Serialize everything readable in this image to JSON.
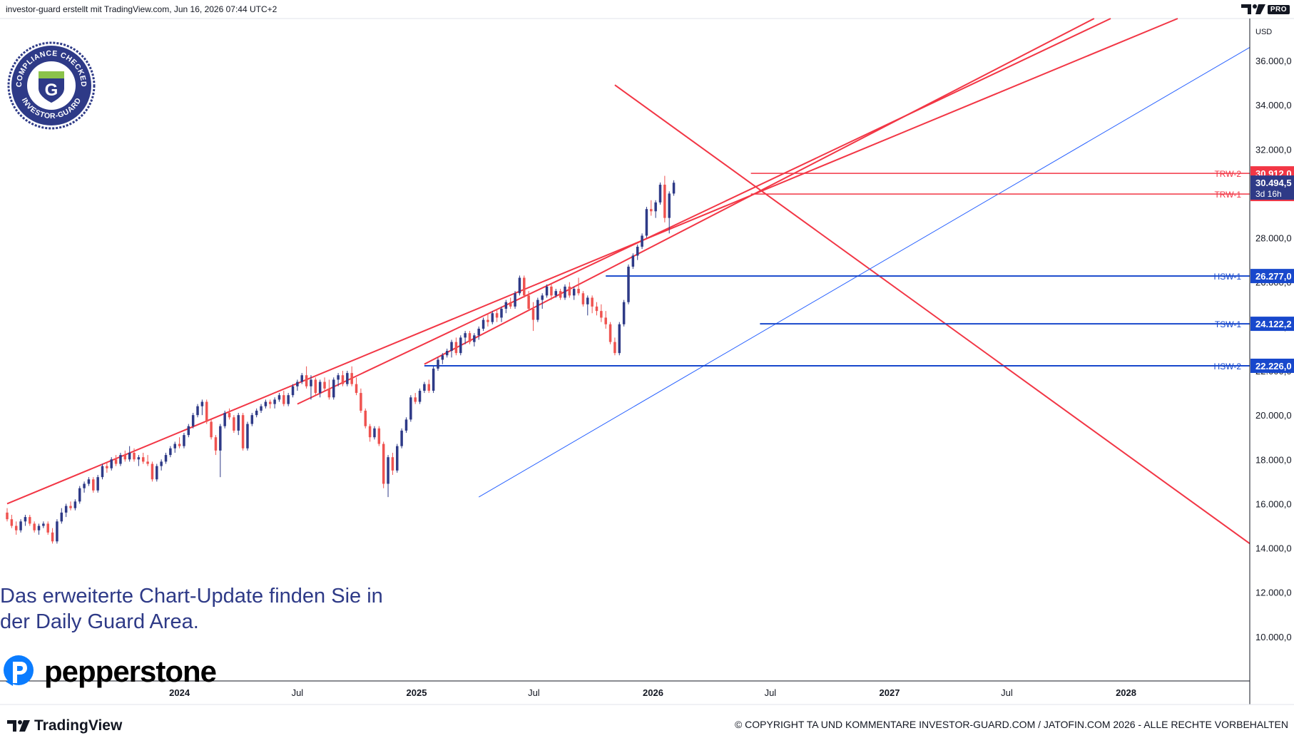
{
  "header": {
    "attribution": "investor-guard erstellt mit TradingView.com, Jun 16, 2026 07:44 UTC+2",
    "pro_label": "PRO"
  },
  "badge": {
    "top_text": "COMPLIANCE CHECKED",
    "bottom_text": "INVESTOR-GUARD",
    "letter": "G"
  },
  "promo": {
    "line1": "Das erweiterte Chart-Update finden Sie in",
    "line2": "der Daily Guard Area."
  },
  "pepperstone": {
    "name": "pepperstone"
  },
  "footer": {
    "tradingview": "TradingView",
    "copyright": "© COPYRIGHT TA UND KOMMENTARE INVESTOR-GUARD.COM / JATOFIN.COM 2026 - ALLE RECHTE VORBEHALTEN"
  },
  "colors": {
    "up": "#2e3a87",
    "down": "#ef5350",
    "resistance": "#f23645",
    "support": "#1848cc",
    "trend_support": "#2962ff",
    "axis_bg": "#ffffff"
  },
  "chart_data": {
    "type": "candlestick",
    "currency": "USD",
    "ylim": [
      8000,
      37900
    ],
    "xlim": [
      "2023-04-10",
      "2028-07-10"
    ],
    "y_ticks": [
      "10.000,0",
      "12.000,0",
      "14.000,0",
      "16.000,0",
      "18.000,0",
      "20.000,0",
      "22.000,0",
      "24.000,0",
      "26.000,0",
      "28.000,0",
      "30.000,0",
      "32.000,0",
      "34.000,0",
      "36.000,0"
    ],
    "x_ticks": [
      {
        "date": "2024-01-01",
        "label": "2024",
        "bold": true
      },
      {
        "date": "2024-07-01",
        "label": "Jul",
        "bold": false
      },
      {
        "date": "2025-01-01",
        "label": "2025",
        "bold": true
      },
      {
        "date": "2025-07-01",
        "label": "Jul",
        "bold": false
      },
      {
        "date": "2026-01-01",
        "label": "2026",
        "bold": true
      },
      {
        "date": "2026-07-01",
        "label": "Jul",
        "bold": false
      },
      {
        "date": "2027-01-01",
        "label": "2027",
        "bold": true
      },
      {
        "date": "2027-07-01",
        "label": "Jul",
        "bold": false
      },
      {
        "date": "2028-01-01",
        "label": "2028",
        "bold": true
      }
    ],
    "first_candle_date": "2023-04-10",
    "candle_interval_days": 7,
    "candles": [
      [
        15600,
        15800,
        15200,
        15300
      ],
      [
        15300,
        15500,
        14900,
        15000
      ],
      [
        15000,
        15200,
        14600,
        14800
      ],
      [
        14800,
        15300,
        14700,
        15200
      ],
      [
        15200,
        15500,
        15000,
        15400
      ],
      [
        15400,
        15500,
        15000,
        15100
      ],
      [
        15100,
        15200,
        14700,
        14800
      ],
      [
        14800,
        15100,
        14600,
        15000
      ],
      [
        15000,
        15200,
        14900,
        15100
      ],
      [
        15100,
        15200,
        14600,
        14700
      ],
      [
        14700,
        14900,
        14200,
        14300
      ],
      [
        14300,
        15300,
        14200,
        15200
      ],
      [
        15200,
        15800,
        15100,
        15600
      ],
      [
        15600,
        16000,
        15400,
        15900
      ],
      [
        15900,
        16100,
        15700,
        15800
      ],
      [
        15800,
        16200,
        15700,
        16100
      ],
      [
        16100,
        16800,
        16000,
        16700
      ],
      [
        16700,
        17000,
        16500,
        16900
      ],
      [
        16900,
        17200,
        16800,
        17100
      ],
      [
        17100,
        17200,
        16500,
        16600
      ],
      [
        16600,
        17300,
        16500,
        17200
      ],
      [
        17200,
        17800,
        17100,
        17700
      ],
      [
        17700,
        17900,
        17400,
        17600
      ],
      [
        17600,
        18100,
        17500,
        18000
      ],
      [
        18000,
        18200,
        17700,
        17800
      ],
      [
        17800,
        18300,
        17700,
        18200
      ],
      [
        18200,
        18400,
        17900,
        18000
      ],
      [
        18000,
        18600,
        17900,
        18300
      ],
      [
        18300,
        18500,
        17900,
        18000
      ],
      [
        18000,
        18200,
        17700,
        18100
      ],
      [
        18100,
        18300,
        17800,
        17900
      ],
      [
        17900,
        18200,
        17700,
        17800
      ],
      [
        17800,
        17900,
        17000,
        17100
      ],
      [
        17100,
        17800,
        17000,
        17700
      ],
      [
        17700,
        18000,
        17500,
        17900
      ],
      [
        17900,
        18300,
        17800,
        18200
      ],
      [
        18200,
        18600,
        18100,
        18500
      ],
      [
        18500,
        18800,
        18300,
        18700
      ],
      [
        18700,
        19000,
        18500,
        18600
      ],
      [
        18600,
        19200,
        18500,
        19100
      ],
      [
        19100,
        19600,
        19000,
        19500
      ],
      [
        19500,
        20100,
        19400,
        20000
      ],
      [
        20000,
        20500,
        19900,
        20400
      ],
      [
        20400,
        20700,
        20000,
        20600
      ],
      [
        20600,
        20700,
        19600,
        19700
      ],
      [
        19700,
        19800,
        18900,
        19000
      ],
      [
        19000,
        19100,
        18200,
        18400
      ],
      [
        18400,
        19600,
        17200,
        19500
      ],
      [
        19500,
        20200,
        19400,
        20100
      ],
      [
        20100,
        20300,
        19800,
        19900
      ],
      [
        19900,
        20000,
        19200,
        19300
      ],
      [
        19300,
        20100,
        19100,
        20000
      ],
      [
        20000,
        20100,
        18400,
        18500
      ],
      [
        18500,
        19700,
        18400,
        19600
      ],
      [
        19600,
        20100,
        19500,
        20000
      ],
      [
        20000,
        20300,
        19900,
        20200
      ],
      [
        20200,
        20500,
        20100,
        20400
      ],
      [
        20400,
        20700,
        20300,
        20600
      ],
      [
        20600,
        20700,
        20300,
        20500
      ],
      [
        20500,
        20800,
        20300,
        20700
      ],
      [
        20700,
        21000,
        20600,
        20900
      ],
      [
        20900,
        21100,
        20400,
        20500
      ],
      [
        20500,
        21000,
        20400,
        20900
      ],
      [
        20900,
        21400,
        20800,
        21300
      ],
      [
        21300,
        21600,
        21100,
        21500
      ],
      [
        21500,
        21900,
        21400,
        21800
      ],
      [
        21800,
        22200,
        21200,
        21300
      ],
      [
        21300,
        21800,
        20700,
        21600
      ],
      [
        21600,
        21700,
        20900,
        21000
      ],
      [
        21000,
        21600,
        20800,
        21500
      ],
      [
        21500,
        21700,
        21100,
        21200
      ],
      [
        21200,
        21600,
        20700,
        20800
      ],
      [
        20800,
        21700,
        20700,
        21600
      ],
      [
        21600,
        21900,
        21300,
        21800
      ],
      [
        21800,
        22000,
        21300,
        21400
      ],
      [
        21400,
        22000,
        21300,
        21900
      ],
      [
        21900,
        22200,
        21300,
        21400
      ],
      [
        21400,
        21700,
        20900,
        21000
      ],
      [
        21000,
        21200,
        20100,
        20200
      ],
      [
        20200,
        20300,
        19400,
        19500
      ],
      [
        19500,
        19600,
        18800,
        19000
      ],
      [
        19000,
        19500,
        18900,
        19400
      ],
      [
        19400,
        19500,
        18600,
        18700
      ],
      [
        18700,
        18800,
        16700,
        16900
      ],
      [
        16900,
        18200,
        16300,
        18100
      ],
      [
        18100,
        18300,
        17300,
        17500
      ],
      [
        17500,
        18700,
        17400,
        18600
      ],
      [
        18600,
        19400,
        18500,
        19300
      ],
      [
        19300,
        19900,
        19200,
        19800
      ],
      [
        19800,
        20900,
        19700,
        20800
      ],
      [
        20800,
        21000,
        20500,
        20600
      ],
      [
        20600,
        21200,
        20500,
        21100
      ],
      [
        21100,
        21500,
        21000,
        21400
      ],
      [
        21400,
        21600,
        21000,
        21100
      ],
      [
        21100,
        22200,
        21000,
        22100
      ],
      [
        22100,
        22600,
        22000,
        22500
      ],
      [
        22500,
        22800,
        22300,
        22700
      ],
      [
        22700,
        23000,
        22600,
        22900
      ],
      [
        22900,
        23400,
        22600,
        23300
      ],
      [
        23300,
        23500,
        22700,
        22800
      ],
      [
        22800,
        23600,
        22700,
        23500
      ],
      [
        23500,
        23800,
        23200,
        23700
      ],
      [
        23700,
        23800,
        23200,
        23300
      ],
      [
        23300,
        23700,
        23100,
        23600
      ],
      [
        23600,
        24000,
        23400,
        23900
      ],
      [
        23900,
        24400,
        23800,
        24300
      ],
      [
        24300,
        24600,
        24000,
        24200
      ],
      [
        24200,
        24700,
        24100,
        24600
      ],
      [
        24600,
        24800,
        24200,
        24400
      ],
      [
        24400,
        24900,
        24200,
        24800
      ],
      [
        24800,
        25200,
        24600,
        25100
      ],
      [
        25100,
        25300,
        24800,
        24900
      ],
      [
        24900,
        25600,
        24800,
        25500
      ],
      [
        25500,
        26300,
        25400,
        26200
      ],
      [
        26200,
        26300,
        25300,
        25400
      ],
      [
        25400,
        25600,
        24700,
        24800
      ],
      [
        24800,
        25100,
        23800,
        24300
      ],
      [
        24300,
        25300,
        24200,
        25200
      ],
      [
        25200,
        25500,
        24800,
        25400
      ],
      [
        25400,
        25900,
        25300,
        25800
      ],
      [
        25800,
        25900,
        25200,
        25400
      ],
      [
        25400,
        25700,
        25300,
        25600
      ],
      [
        25600,
        25700,
        25200,
        25300
      ],
      [
        25300,
        25900,
        25200,
        25800
      ],
      [
        25800,
        26000,
        25300,
        25400
      ],
      [
        25400,
        25800,
        25200,
        25700
      ],
      [
        25700,
        26200,
        25400,
        25500
      ],
      [
        25500,
        25600,
        24900,
        25000
      ],
      [
        25000,
        25400,
        24500,
        25300
      ],
      [
        25300,
        25400,
        24600,
        24900
      ],
      [
        24900,
        25100,
        24500,
        24700
      ],
      [
        24700,
        25000,
        24200,
        24400
      ],
      [
        24400,
        24700,
        23900,
        24100
      ],
      [
        24100,
        24200,
        23200,
        23300
      ],
      [
        23300,
        23500,
        22700,
        22800
      ],
      [
        22800,
        24200,
        22700,
        24100
      ],
      [
        24100,
        25200,
        24000,
        25100
      ],
      [
        25100,
        26800,
        25000,
        26700
      ],
      [
        26700,
        27300,
        26600,
        27200
      ],
      [
        27200,
        27700,
        27000,
        27600
      ],
      [
        27600,
        28200,
        27500,
        28100
      ],
      [
        28100,
        29400,
        28000,
        29300
      ],
      [
        29300,
        29700,
        29000,
        29200
      ],
      [
        29200,
        29700,
        28900,
        29600
      ],
      [
        29600,
        30500,
        29500,
        30400
      ],
      [
        30400,
        30800,
        28700,
        28900
      ],
      [
        28900,
        30100,
        28200,
        30000
      ],
      [
        30000,
        30600,
        29900,
        30490
      ]
    ],
    "horizontal_levels": [
      {
        "name": "TRW-2",
        "value": 30912,
        "price_label": "30.912,0",
        "kind": "resistance",
        "from": "2026-06-01"
      },
      {
        "name": "TRW-1",
        "value": 29980,
        "price_label": "29.980,1",
        "kind": "resistance",
        "from": "2026-06-01"
      },
      {
        "name": "HSW-1",
        "value": 26277,
        "price_label": "26.277,0",
        "kind": "support",
        "from": "2025-10-20"
      },
      {
        "name": "TSW-1",
        "value": 24122,
        "price_label": "24.122,2",
        "kind": "support",
        "from": "2026-06-15"
      },
      {
        "name": "HSW-2",
        "value": 22226,
        "price_label": "22.226,0",
        "kind": "support",
        "from": "2025-01-13"
      }
    ],
    "current_price": {
      "value": 30494.5,
      "label": "30.494,5",
      "countdown": "3d 16h"
    },
    "trend_lines": [
      {
        "kind": "resistance",
        "p1": [
          "2023-04-10",
          16000
        ],
        "p2": [
          "2026-06-08",
          30000
        ],
        "extend": true
      },
      {
        "kind": "resistance",
        "p1": [
          "2024-07-01",
          20500
        ],
        "p2": [
          "2026-06-08",
          30300
        ],
        "extend": true
      },
      {
        "kind": "resistance",
        "p1": [
          "2025-01-13",
          22300
        ],
        "p2": [
          "2026-05-25",
          29800
        ],
        "extend": true
      },
      {
        "kind": "resistance_down",
        "p1": [
          "2025-11-03",
          34900
        ],
        "p2": [
          "2028-07-10",
          14200
        ],
        "extend": false
      },
      {
        "kind": "trend_support",
        "p1": [
          "2025-04-07",
          16300
        ],
        "p2": [
          "2028-07-10",
          36600
        ],
        "extend": false
      }
    ]
  }
}
